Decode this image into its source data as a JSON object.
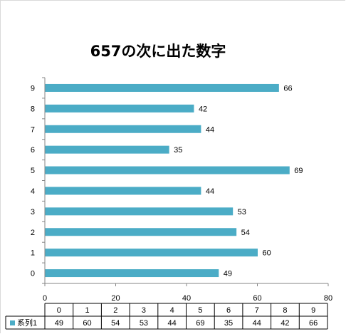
{
  "chart_data": {
    "type": "bar",
    "orientation": "horizontal",
    "title": "657の次に出た数字",
    "categories": [
      "0",
      "1",
      "2",
      "3",
      "4",
      "5",
      "6",
      "7",
      "8",
      "9"
    ],
    "series": [
      {
        "name": "系列1",
        "values": [
          49,
          60,
          54,
          53,
          44,
          69,
          35,
          44,
          42,
          66
        ],
        "color": "#4bacc6"
      }
    ],
    "xlim": [
      0,
      80
    ],
    "xticks": [
      0,
      20,
      40,
      60,
      80
    ],
    "grid": false,
    "data_labels": true,
    "legend": "data-table",
    "data_table": {
      "series_label": "系列1",
      "headers": [
        "0",
        "1",
        "2",
        "3",
        "4",
        "5",
        "6",
        "7",
        "8",
        "9"
      ],
      "values": [
        49,
        60,
        54,
        53,
        44,
        69,
        35,
        44,
        42,
        66
      ]
    },
    "colors": {
      "bar": "#4bacc6",
      "axis": "#868686"
    }
  }
}
